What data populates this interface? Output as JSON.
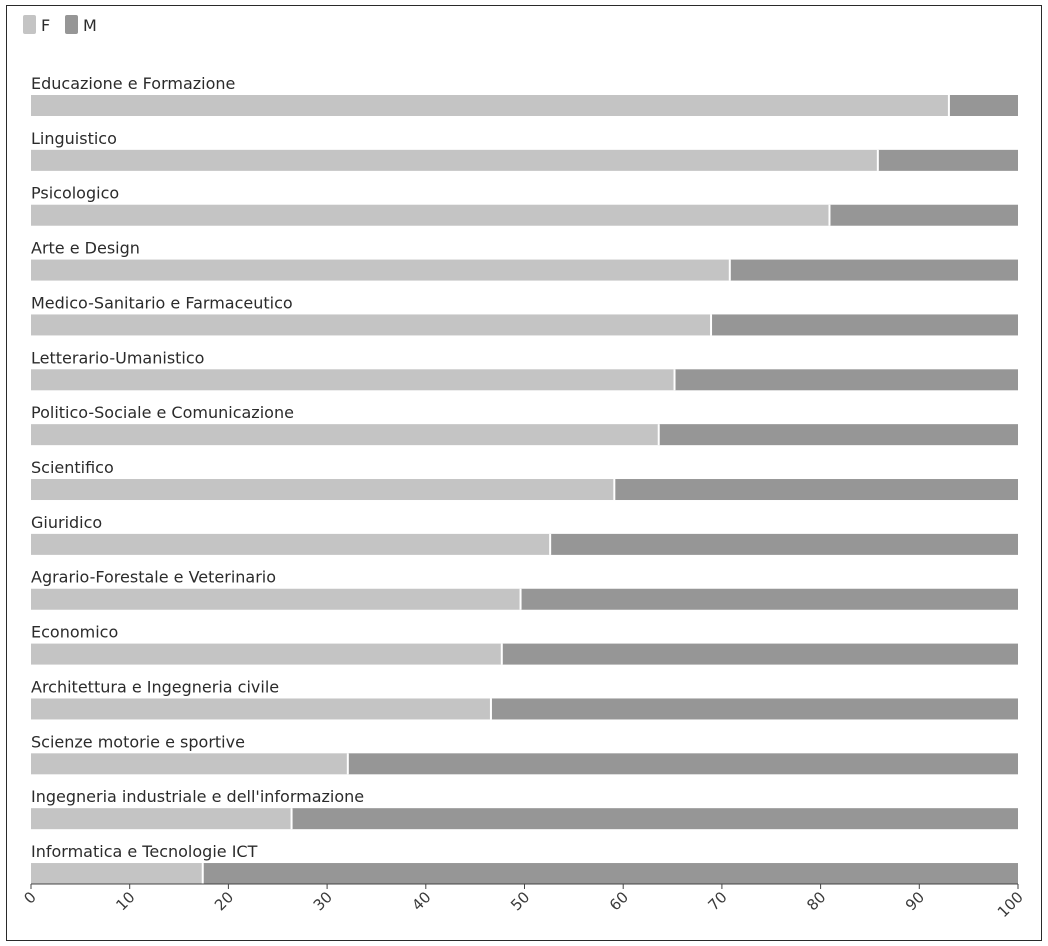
{
  "chart_data": {
    "type": "bar",
    "orientation": "horizontal",
    "stacked": true,
    "categories": [
      "Educazione e Formazione",
      "Linguistico",
      "Psicologico",
      "Arte e Design",
      "Medico-Sanitario e Farmaceutico",
      "Letterario-Umanistico",
      "Politico-Sociale e Comunicazione",
      "Scientifico",
      "Giuridico",
      "Agrario-Forestale e Veterinario",
      "Economico",
      "Architettura e Ingegneria civile",
      "Scienze motorie e sportive",
      "Ingegneria industriale e dell'informazione",
      "Informatica e Tecnologie ICT"
    ],
    "series": [
      {
        "name": "F",
        "color": "#c4c4c4",
        "values": [
          93,
          85.8,
          80.9,
          70.8,
          68.9,
          65.2,
          63.6,
          59.1,
          52.6,
          49.6,
          47.7,
          46.6,
          32.1,
          26.4,
          17.4
        ]
      },
      {
        "name": "M",
        "color": "#969696",
        "values": [
          7,
          14.2,
          19.1,
          29.2,
          31.1,
          34.8,
          36.4,
          40.9,
          47.4,
          50.4,
          52.3,
          53.4,
          67.9,
          73.6,
          82.6
        ]
      }
    ],
    "xlim": [
      0,
      100
    ],
    "xticks": [
      "0",
      "10",
      "20",
      "30",
      "40",
      "50",
      "60",
      "70",
      "80",
      "90",
      "100"
    ],
    "xlabel": "",
    "ylabel": "",
    "title": "",
    "legend": "top-left",
    "grid": false
  }
}
